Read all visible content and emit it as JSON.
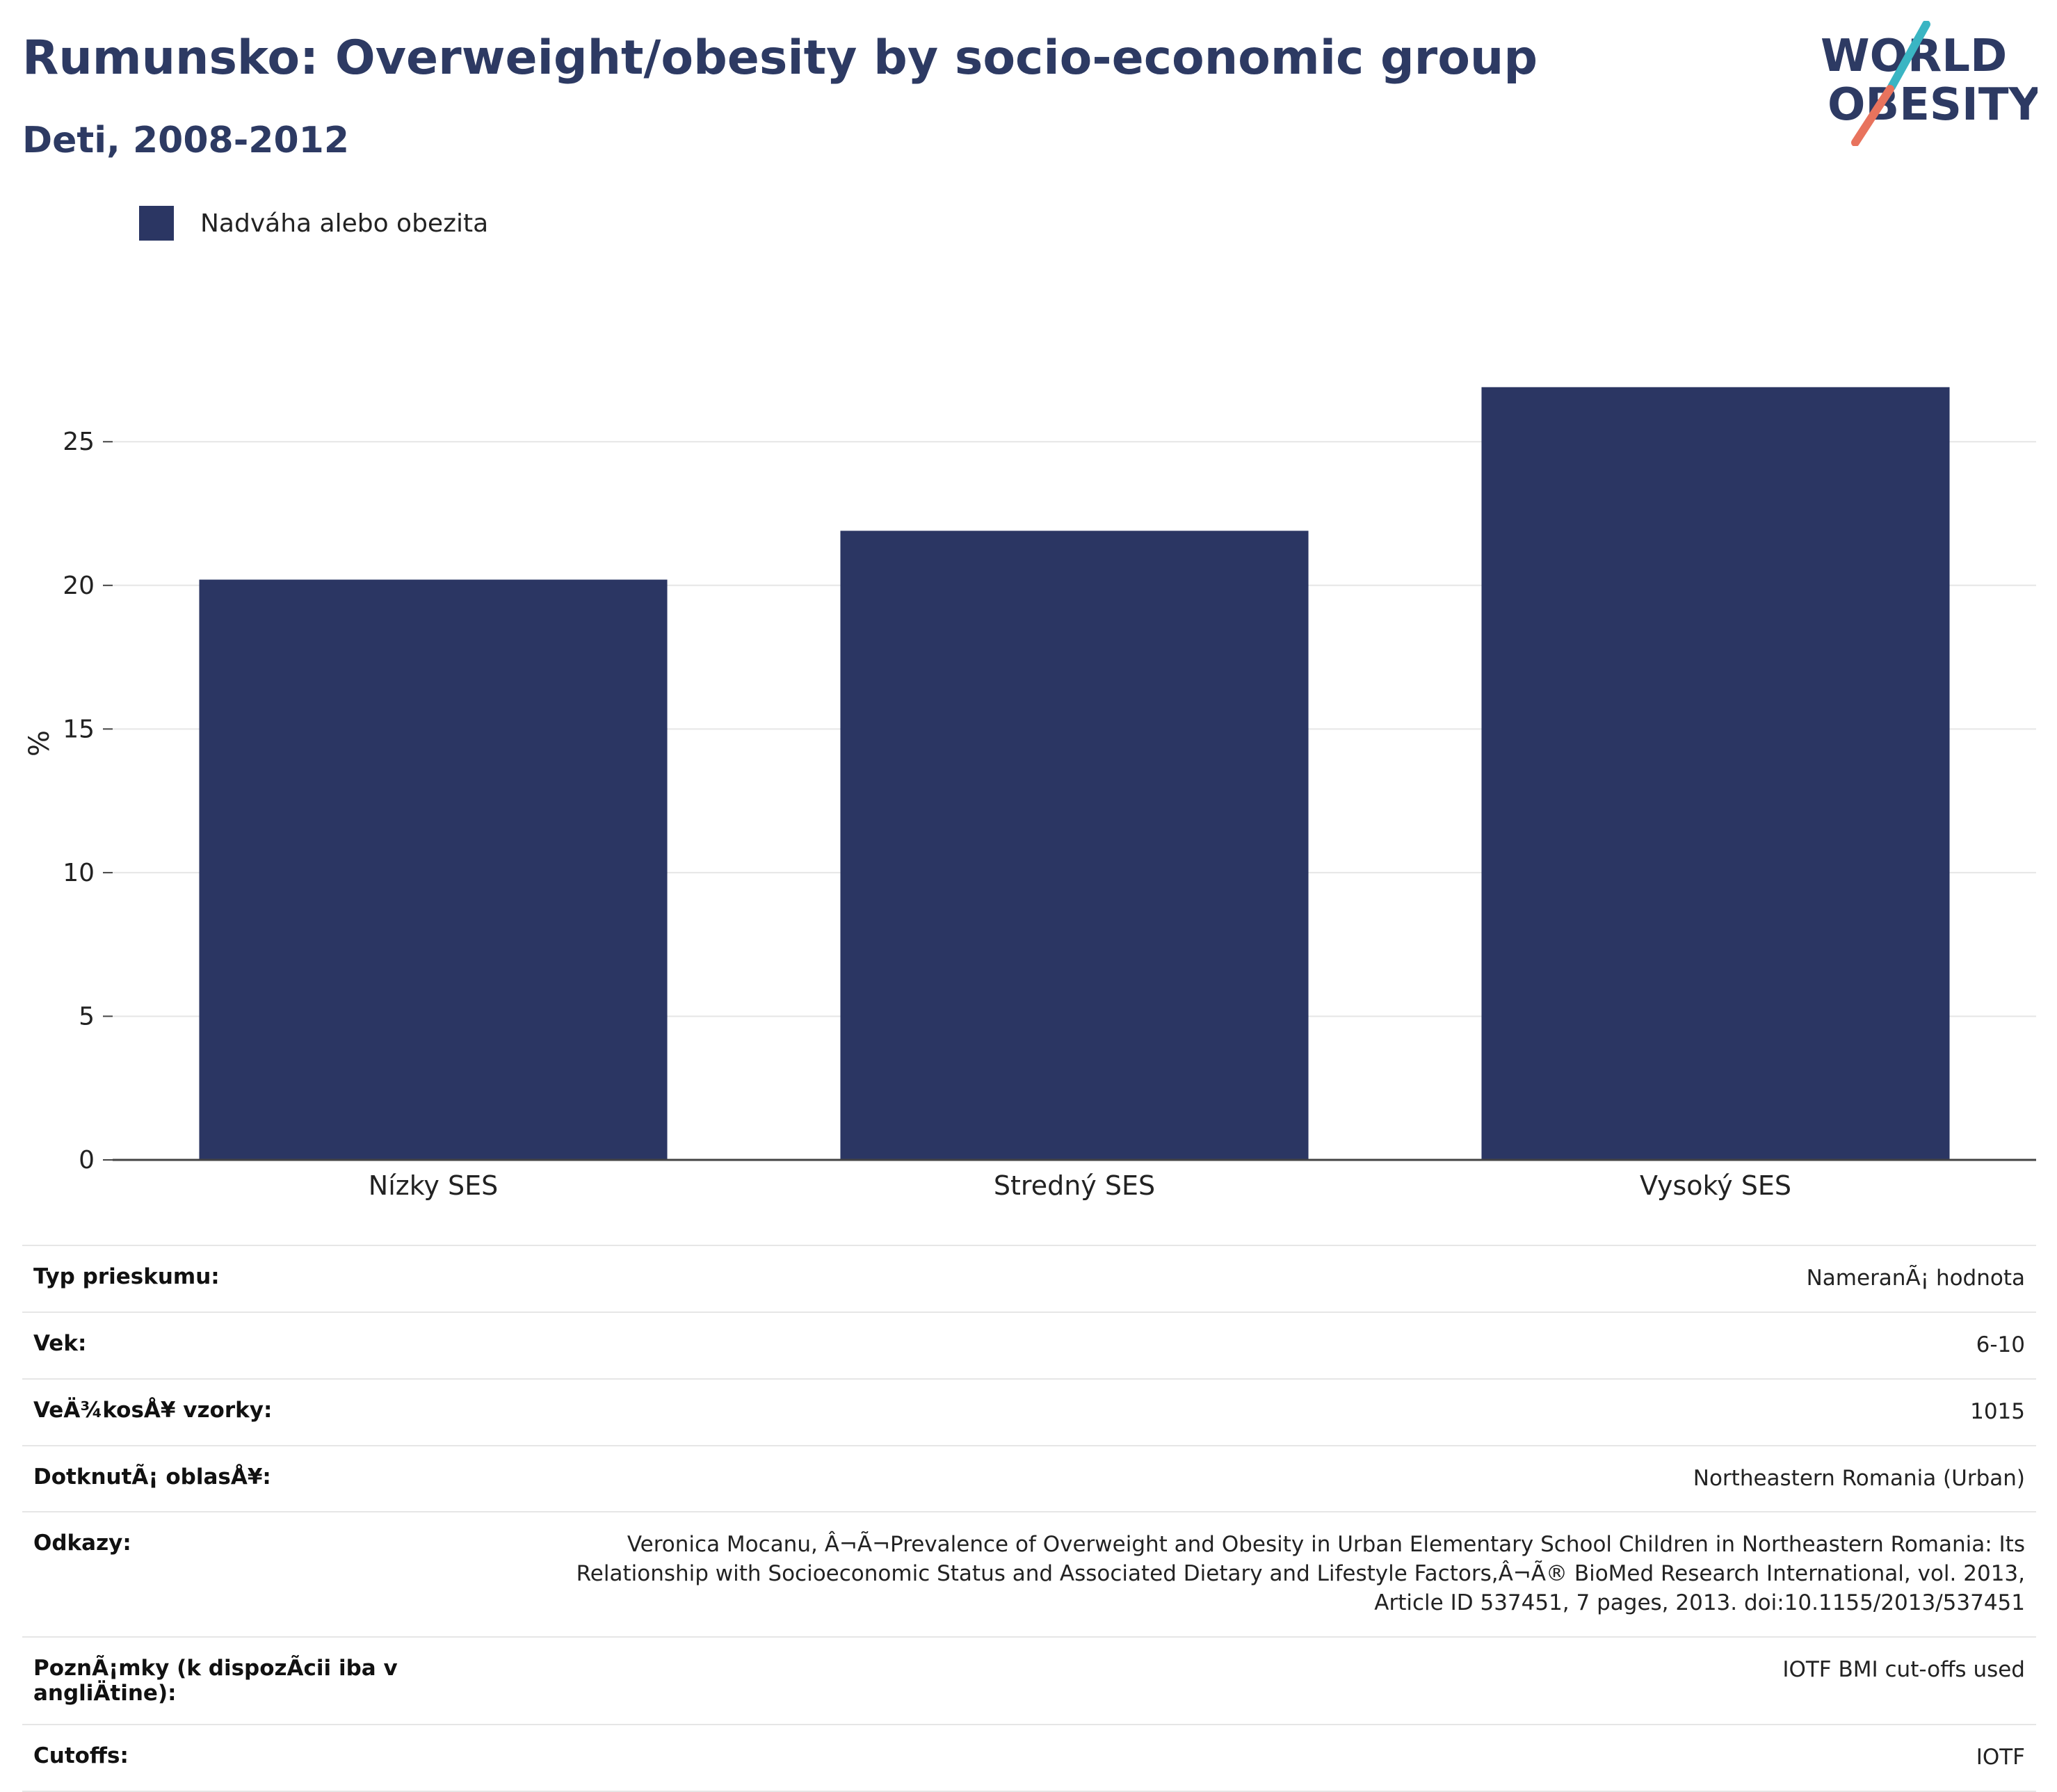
{
  "header": {
    "title": "Rumunsko: Overweight/obesity by socio-economic group",
    "subtitle": "Deti, 2008-2012"
  },
  "logo": {
    "line1": "WORLD",
    "line2": "OBESITY",
    "accent_teal": "#3ab5c3",
    "accent_coral": "#e8735d",
    "text_color": "#2d3a63"
  },
  "colors": {
    "bar": "#2b3663",
    "title": "#2d3a63",
    "grid": "#e6e6e6",
    "axis": "#444444"
  },
  "chart_data": {
    "type": "bar",
    "categories": [
      "Nízky SES",
      "Stredný SES",
      "Vysoký SES"
    ],
    "series": [
      {
        "name": "Nadváha alebo obezita",
        "values": [
          20.2,
          21.9,
          26.9
        ]
      }
    ],
    "title": "Rumunsko: Overweight/obesity by socio-economic group",
    "subtitle": "Deti, 2008-2012",
    "xlabel": "",
    "ylabel": "%",
    "ylim": [
      0,
      29
    ],
    "yticks": [
      0,
      5,
      10,
      15,
      20,
      25
    ],
    "grid": true,
    "legend": "top-left"
  },
  "info": [
    {
      "key": "Typ prieskumu:",
      "value": "NameranÃ¡ hodnota"
    },
    {
      "key": "Vek:",
      "value": "6-10"
    },
    {
      "key": "VeÄ¾kosÅ¥ vzorky:",
      "value": "1015"
    },
    {
      "key": "DotknutÃ¡ oblasÅ¥:",
      "value": "Northeastern Romania (Urban)"
    },
    {
      "key": "Odkazy:",
      "value": "Veronica Mocanu, Â¬Ã¬Prevalence of Overweight and Obesity in Urban Elementary School Children in Northeastern Romania: Its Relationship with Socioeconomic Status and Associated Dietary and Lifestyle Factors,Â¬Ã® BioMed Research International, vol. 2013, Article ID 537451, 7 pages, 2013. doi:10.1155/2013/537451"
    },
    {
      "key": "PoznÃ¡mky (k dispozÃcii iba v angliÄtine):",
      "value": "IOTF BMI cut-offs used"
    },
    {
      "key": "Cutoffs:",
      "value": "IOTF"
    }
  ]
}
